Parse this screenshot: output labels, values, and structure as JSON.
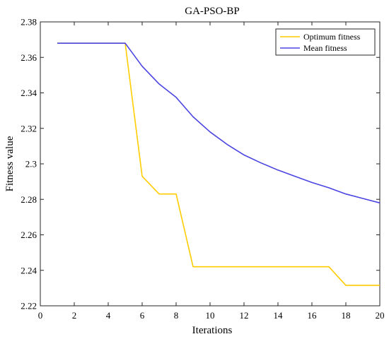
{
  "chart_data": {
    "type": "line",
    "title": "GA-PSO-BP",
    "xlabel": "Iterations",
    "ylabel": "Fitness value",
    "xlim": [
      0,
      20
    ],
    "ylim": [
      2.22,
      2.38
    ],
    "x_ticks": [
      "0",
      "2",
      "4",
      "6",
      "8",
      "10",
      "12",
      "14",
      "16",
      "18",
      "20"
    ],
    "y_ticks": [
      "2.22",
      "2.24",
      "2.26",
      "2.28",
      "2.3",
      "2.32",
      "2.34",
      "2.36",
      "2.38"
    ],
    "grid": false,
    "legend_position": "top-right",
    "series": [
      {
        "name": "Optimum fitness",
        "color": "#FFCC00",
        "x": [
          1,
          2,
          3,
          4,
          5,
          6,
          7,
          8,
          9,
          10,
          11,
          12,
          13,
          14,
          15,
          16,
          17,
          18,
          19,
          20
        ],
        "y": [
          2.368,
          2.368,
          2.368,
          2.368,
          2.368,
          2.293,
          2.283,
          2.283,
          2.242,
          2.242,
          2.242,
          2.242,
          2.242,
          2.242,
          2.242,
          2.242,
          2.242,
          2.2315,
          2.2315,
          2.2315
        ]
      },
      {
        "name": "Mean fitness",
        "color": "#4A45E0",
        "x": [
          1,
          2,
          3,
          4,
          5,
          6,
          7,
          8,
          9,
          10,
          11,
          12,
          13,
          14,
          15,
          16,
          17,
          18,
          19,
          20
        ],
        "y": [
          2.368,
          2.368,
          2.368,
          2.368,
          2.368,
          2.355,
          2.345,
          2.3375,
          2.3265,
          2.318,
          2.311,
          2.305,
          2.3005,
          2.2965,
          2.293,
          2.2895,
          2.2865,
          2.283,
          2.2805,
          2.278
        ]
      }
    ]
  }
}
